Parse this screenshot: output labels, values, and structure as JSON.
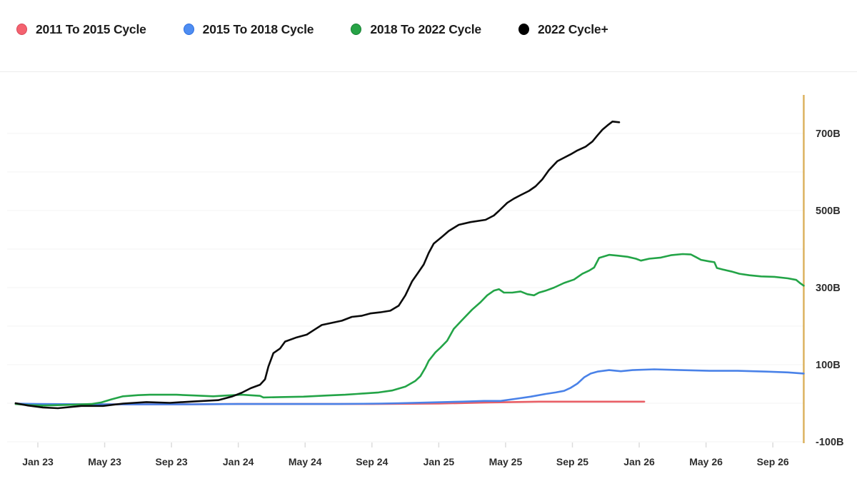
{
  "legend": {
    "items": [
      {
        "label": "2011 To 2015 Cycle",
        "color": "#f4626f",
        "border": "#d84a5b"
      },
      {
        "label": "2015 To 2018 Cycle",
        "color": "#4e8df2",
        "border": "#2e6fdf"
      },
      {
        "label": "2018 To 2022 Cycle",
        "color": "#27a346",
        "border": "#168033"
      },
      {
        "label": "2022 Cycle+",
        "color": "#000000",
        "border": "#000000"
      }
    ]
  },
  "chart_data": {
    "type": "line",
    "unit": "B",
    "x_axis": {
      "ticks": [
        {
          "m": 0,
          "label": "Jan 23"
        },
        {
          "m": 4,
          "label": "May 23"
        },
        {
          "m": 8,
          "label": "Sep 23"
        },
        {
          "m": 12,
          "label": "Jan 24"
        },
        {
          "m": 16,
          "label": "May 24"
        },
        {
          "m": 20,
          "label": "Sep 24"
        },
        {
          "m": 24,
          "label": "Jan 25"
        },
        {
          "m": 28,
          "label": "May 25"
        },
        {
          "m": 32,
          "label": "Sep 25"
        },
        {
          "m": 36,
          "label": "Jan 26"
        },
        {
          "m": 40,
          "label": "May 26"
        },
        {
          "m": 44,
          "label": "Sep 26"
        }
      ]
    },
    "y_axis": {
      "side": "right",
      "range": [
        -100,
        700
      ],
      "gridlines_every": 100,
      "grid": true,
      "labels": [
        {
          "v": 700,
          "label": "700B"
        },
        {
          "v": 500,
          "label": "500B"
        },
        {
          "v": 300,
          "label": "300B"
        },
        {
          "v": 100,
          "label": "100B"
        },
        {
          "v": -100,
          "label": "-100B"
        }
      ]
    },
    "marker_line": {
      "x_month": 45.85,
      "color": "#dcb25f"
    },
    "series": [
      {
        "name": "2011 To 2015 Cycle",
        "color": "#e95f66",
        "points": [
          [
            -1.33,
            -2
          ],
          [
            0,
            -3
          ],
          [
            4,
            -3
          ],
          [
            8,
            -3
          ],
          [
            12,
            -2
          ],
          [
            16,
            -2
          ],
          [
            20,
            -2
          ],
          [
            24,
            -1
          ],
          [
            27,
            2
          ],
          [
            30,
            4
          ],
          [
            33,
            4
          ],
          [
            36.3,
            4
          ]
        ]
      },
      {
        "name": "2015 To 2018 Cycle",
        "color": "#4a82e8",
        "points": [
          [
            -1.33,
            -1
          ],
          [
            0,
            -2
          ],
          [
            3,
            -3
          ],
          [
            6,
            -3
          ],
          [
            9,
            -3
          ],
          [
            12,
            -2
          ],
          [
            15,
            -2
          ],
          [
            18,
            -2
          ],
          [
            20.5,
            -1
          ],
          [
            21.6,
            0
          ],
          [
            23.5,
            2
          ],
          [
            25.4,
            4
          ],
          [
            26.7,
            6
          ],
          [
            27.7,
            6
          ],
          [
            28.7,
            12
          ],
          [
            29.5,
            17
          ],
          [
            30.4,
            24
          ],
          [
            31.0,
            28
          ],
          [
            31.5,
            32
          ],
          [
            31.9,
            40
          ],
          [
            32.3,
            51
          ],
          [
            32.7,
            67
          ],
          [
            33.1,
            77
          ],
          [
            33.5,
            82
          ],
          [
            34.2,
            86
          ],
          [
            34.9,
            83
          ],
          [
            35.6,
            86
          ],
          [
            36.9,
            88
          ],
          [
            38.5,
            86
          ],
          [
            40.2,
            84
          ],
          [
            41.9,
            84
          ],
          [
            43.6,
            82
          ],
          [
            44.9,
            80
          ],
          [
            45.85,
            77
          ]
        ]
      },
      {
        "name": "2018 To 2022 Cycle",
        "color": "#23a447",
        "points": [
          [
            -1.33,
            -2
          ],
          [
            -0.5,
            -5
          ],
          [
            0.3,
            -6
          ],
          [
            2.0,
            -4
          ],
          [
            3.2,
            -2
          ],
          [
            3.8,
            2
          ],
          [
            4.4,
            10
          ],
          [
            5.1,
            18
          ],
          [
            6.0,
            21
          ],
          [
            6.7,
            22
          ],
          [
            7.5,
            22
          ],
          [
            8.3,
            22
          ],
          [
            9.4,
            20
          ],
          [
            10.5,
            18
          ],
          [
            11.3,
            20
          ],
          [
            12.2,
            22
          ],
          [
            13.3,
            19
          ],
          [
            13.5,
            15
          ],
          [
            14.5,
            16
          ],
          [
            15.9,
            17
          ],
          [
            17.3,
            20
          ],
          [
            18.4,
            22
          ],
          [
            19.1,
            24
          ],
          [
            20.4,
            28
          ],
          [
            21.2,
            33
          ],
          [
            22.0,
            43
          ],
          [
            22.6,
            58
          ],
          [
            22.9,
            70
          ],
          [
            23.2,
            92
          ],
          [
            23.4,
            110
          ],
          [
            23.8,
            132
          ],
          [
            24.1,
            144
          ],
          [
            24.5,
            162
          ],
          [
            24.9,
            193
          ],
          [
            25.4,
            216
          ],
          [
            26.0,
            243
          ],
          [
            26.5,
            262
          ],
          [
            26.9,
            280
          ],
          [
            27.3,
            292
          ],
          [
            27.6,
            296
          ],
          [
            27.9,
            287
          ],
          [
            28.4,
            287
          ],
          [
            28.9,
            290
          ],
          [
            29.3,
            283
          ],
          [
            29.7,
            280
          ],
          [
            30.0,
            287
          ],
          [
            30.4,
            292
          ],
          [
            30.9,
            300
          ],
          [
            31.5,
            312
          ],
          [
            32.1,
            321
          ],
          [
            32.6,
            336
          ],
          [
            33.0,
            344
          ],
          [
            33.3,
            352
          ],
          [
            33.6,
            377
          ],
          [
            34.2,
            385
          ],
          [
            34.7,
            383
          ],
          [
            35.3,
            380
          ],
          [
            35.8,
            375
          ],
          [
            36.1,
            370
          ],
          [
            36.6,
            375
          ],
          [
            37.3,
            378
          ],
          [
            37.9,
            384
          ],
          [
            38.6,
            387
          ],
          [
            39.1,
            386
          ],
          [
            39.4,
            379
          ],
          [
            39.7,
            372
          ],
          [
            40.2,
            368
          ],
          [
            40.5,
            366
          ],
          [
            40.65,
            351
          ],
          [
            41.0,
            347
          ],
          [
            41.5,
            342
          ],
          [
            42.0,
            336
          ],
          [
            42.6,
            332
          ],
          [
            43.3,
            329
          ],
          [
            44.1,
            328
          ],
          [
            44.9,
            324
          ],
          [
            45.4,
            320
          ],
          [
            45.65,
            311
          ],
          [
            45.85,
            305
          ]
        ]
      },
      {
        "name": "2022 Cycle+",
        "color": "#0b0b0b",
        "points": [
          [
            -1.33,
            0
          ],
          [
            -0.6,
            -6
          ],
          [
            0.3,
            -11
          ],
          [
            1.2,
            -13
          ],
          [
            2.6,
            -7
          ],
          [
            3.9,
            -7
          ],
          [
            5.1,
            -1
          ],
          [
            6.5,
            3
          ],
          [
            7.9,
            1
          ],
          [
            9.5,
            5
          ],
          [
            10.8,
            8
          ],
          [
            11.6,
            17
          ],
          [
            12.2,
            27
          ],
          [
            12.75,
            39
          ],
          [
            13.3,
            48
          ],
          [
            13.6,
            62
          ],
          [
            13.8,
            95
          ],
          [
            14.1,
            130
          ],
          [
            14.5,
            142
          ],
          [
            14.8,
            160
          ],
          [
            15.5,
            171
          ],
          [
            16.1,
            178
          ],
          [
            16.6,
            192
          ],
          [
            17.0,
            203
          ],
          [
            18.2,
            214
          ],
          [
            18.8,
            224
          ],
          [
            19.4,
            227
          ],
          [
            19.9,
            233
          ],
          [
            20.5,
            236
          ],
          [
            21.1,
            240
          ],
          [
            21.6,
            253
          ],
          [
            22.0,
            280
          ],
          [
            22.4,
            316
          ],
          [
            22.8,
            341
          ],
          [
            23.1,
            360
          ],
          [
            23.4,
            390
          ],
          [
            23.7,
            414
          ],
          [
            24.2,
            432
          ],
          [
            24.6,
            447
          ],
          [
            25.2,
            463
          ],
          [
            25.9,
            470
          ],
          [
            26.8,
            476
          ],
          [
            27.3,
            487
          ],
          [
            27.6,
            499
          ],
          [
            28.1,
            520
          ],
          [
            28.5,
            531
          ],
          [
            28.9,
            540
          ],
          [
            29.4,
            551
          ],
          [
            29.8,
            563
          ],
          [
            30.2,
            581
          ],
          [
            30.6,
            605
          ],
          [
            31.1,
            628
          ],
          [
            31.5,
            637
          ],
          [
            31.9,
            646
          ],
          [
            32.3,
            656
          ],
          [
            32.8,
            666
          ],
          [
            33.2,
            679
          ],
          [
            33.5,
            695
          ],
          [
            33.8,
            710
          ],
          [
            34.1,
            721
          ],
          [
            34.4,
            731
          ],
          [
            34.8,
            729
          ]
        ]
      }
    ]
  }
}
